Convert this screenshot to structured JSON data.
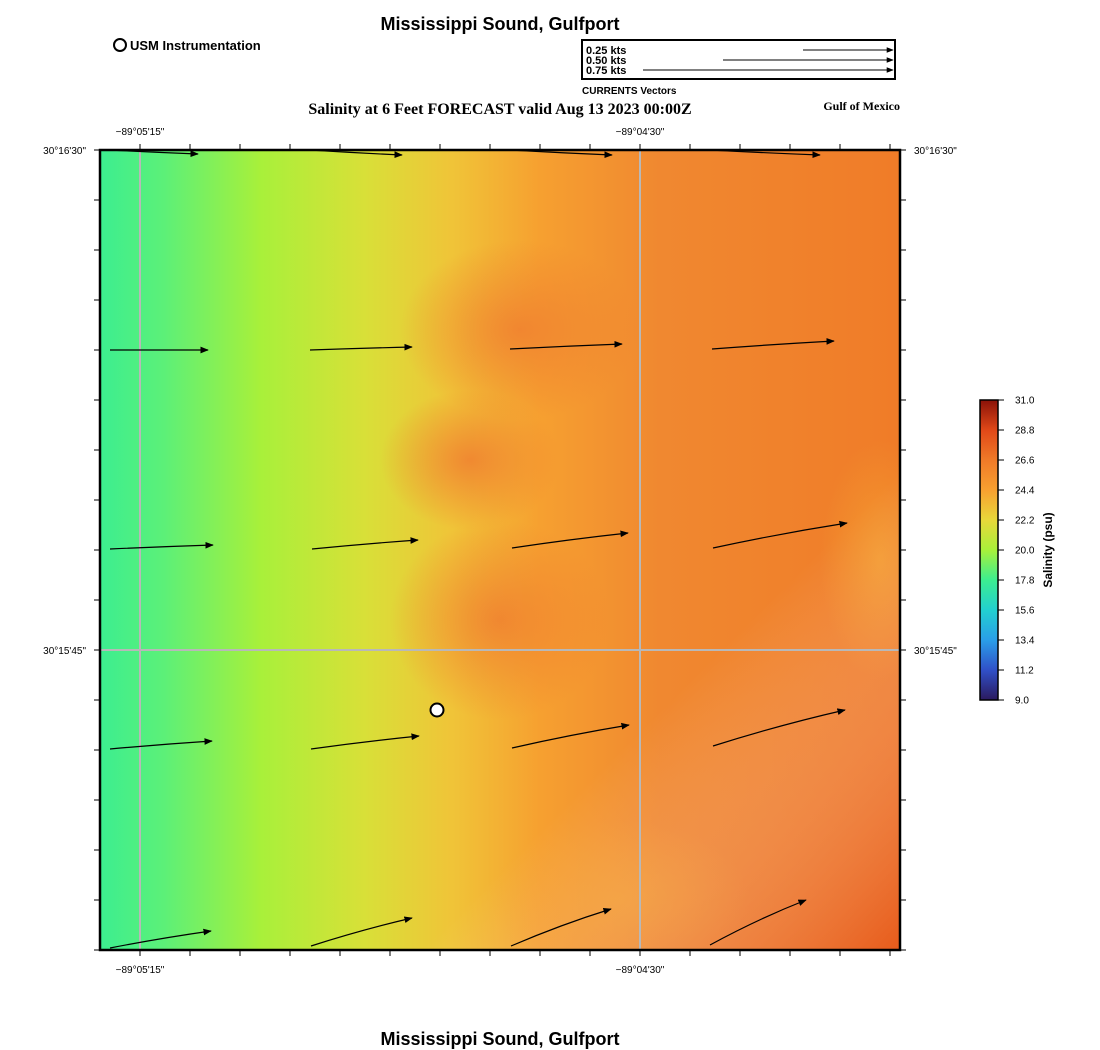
{
  "header": {
    "title": "Mississippi Sound, Gulfport",
    "subtitle": "Salinity at 6 Feet FORECAST valid Aug 13 2023 00:00Z",
    "region_label": "Gulf of Mexico",
    "footer_title": "Mississippi Sound, Gulfport"
  },
  "legend": {
    "station_label": "USM Instrumentation",
    "vector_title": "CURRENTS Vectors",
    "vector_scale": [
      {
        "label": "0.25 kts",
        "speed_kts": 0.25
      },
      {
        "label": "0.50 kts",
        "speed_kts": 0.5
      },
      {
        "label": "0.75 kts",
        "speed_kts": 0.75
      }
    ]
  },
  "axes": {
    "lon_ticks": [
      "−89°05'15\"",
      "−89°04'30\""
    ],
    "lat_ticks": [
      "30°16'30\"",
      "30°15'45\""
    ]
  },
  "colorbar": {
    "label": "Salinity (psu)",
    "min": 9.0,
    "max": 31.0,
    "ticks": [
      "31.0",
      "28.8",
      "26.6",
      "24.4",
      "22.2",
      "20.0",
      "17.8",
      "15.6",
      "13.4",
      "11.2",
      "9.0"
    ],
    "colors": [
      "#2b1a5e",
      "#3050c8",
      "#2a9ee8",
      "#22d0d0",
      "#3cee90",
      "#a8f03a",
      "#e8d83a",
      "#f8a030",
      "#f07a28",
      "#e04818",
      "#8a1208"
    ]
  },
  "map": {
    "salinity_colors": {
      "green_low": "#3cee90",
      "green": "#a8f03a",
      "yellow": "#e8d83a",
      "light_orange": "#f8a030",
      "orange": "#f08030",
      "dark_orange": "#e85818"
    },
    "station": {
      "name": "USM Instrumentation"
    }
  }
}
